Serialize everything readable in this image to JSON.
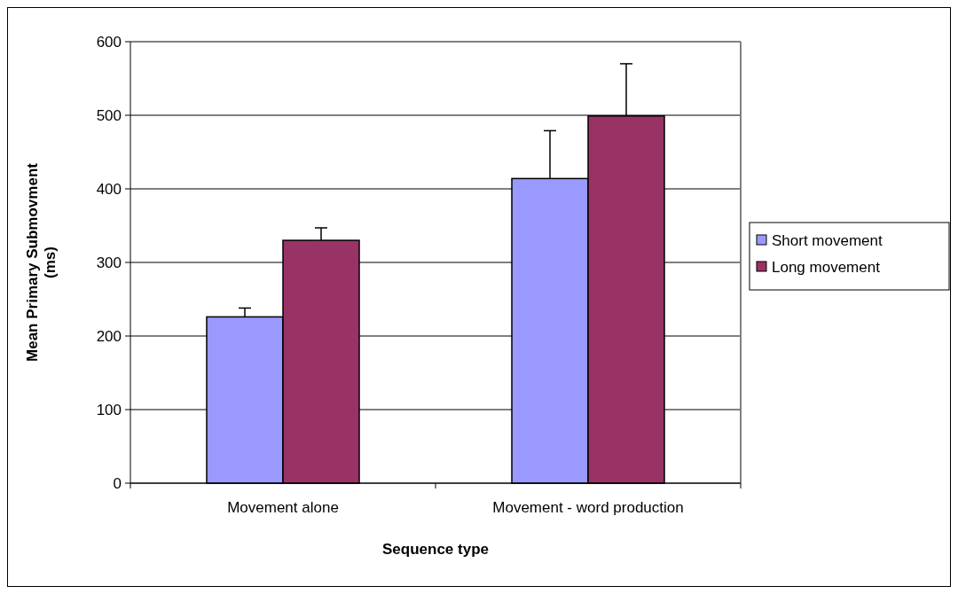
{
  "chart_data": {
    "type": "bar",
    "xlabel": "Sequence type",
    "ylabel": "Mean Primary Submovment (ms)",
    "categories": [
      "Movement alone",
      "Movement - word production"
    ],
    "series": [
      {
        "name": "Short movement",
        "color": "#9999ff",
        "values": [
          226,
          414
        ],
        "errors": [
          [
            226,
            238
          ],
          [
            414,
            479
          ]
        ]
      },
      {
        "name": "Long movement",
        "color": "#993366",
        "values": [
          330,
          499
        ],
        "errors": [
          [
            330,
            347
          ],
          [
            499,
            570
          ]
        ]
      }
    ],
    "ylim": [
      0,
      600
    ],
    "yticks": [
      0,
      100,
      200,
      300,
      400,
      500,
      600
    ],
    "grid": "y",
    "legend": "right"
  }
}
